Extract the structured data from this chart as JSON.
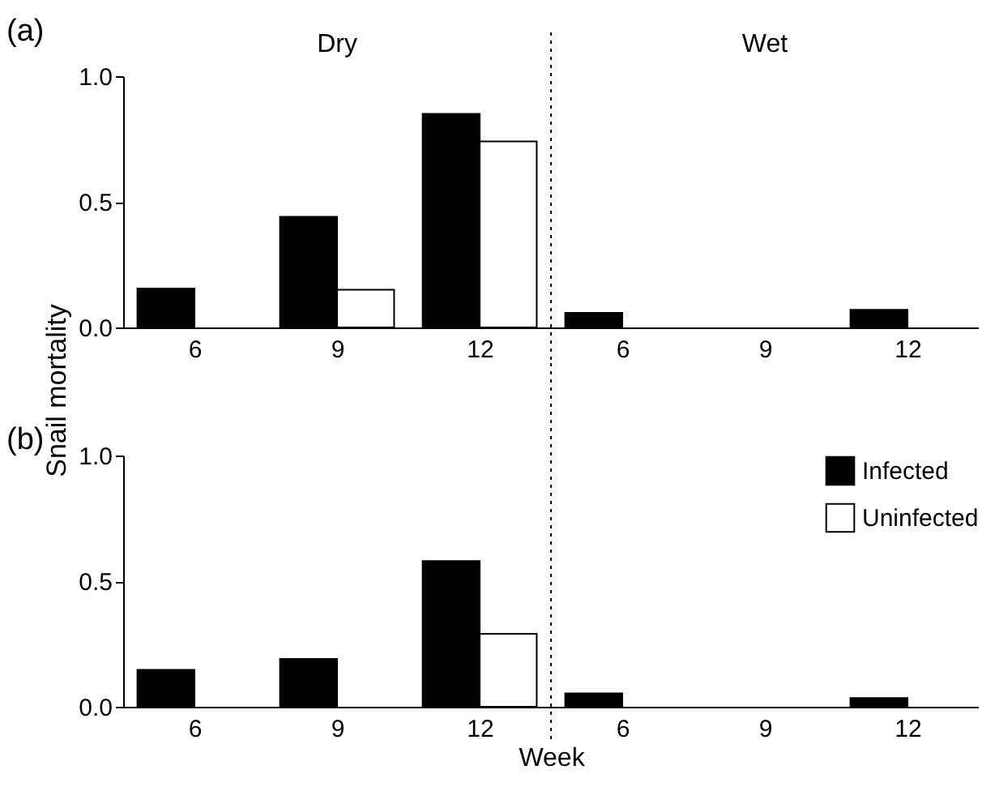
{
  "chart_data": [
    {
      "type": "bar",
      "title": "(a)",
      "ylabel": "Snail mortality",
      "categories": [
        "6",
        "9",
        "12",
        "6",
        "9",
        "12"
      ],
      "series": [
        {
          "color": "#000000",
          "values": [
            0.155,
            0.44,
            0.85,
            0.058,
            null,
            0.07
          ]
        },
        {
          "color": "#ffffff",
          "values": [
            null,
            0.15,
            0.74,
            null,
            null,
            null
          ]
        }
      ],
      "annotations": [
        "Dry",
        "Wet"
      ],
      "ylim": [
        0,
        1
      ],
      "yticks": [
        {
          "value": 0,
          "label": "0.0"
        },
        {
          "value": 0.5,
          "label": "0.5"
        },
        {
          "value": 1,
          "label": "1.0"
        }
      ],
      "legend": false
    },
    {
      "type": "bar",
      "title": "(b)",
      "xlabel": "Week",
      "categories": [
        "6",
        "9",
        "12",
        "6",
        "9",
        "12"
      ],
      "series": [
        {
          "name": "Infected",
          "color": "#000000",
          "values": [
            0.147,
            0.19,
            0.58,
            0.053,
            null,
            0.035
          ]
        },
        {
          "name": "Uninfected",
          "color": "#ffffff",
          "values": [
            null,
            null,
            0.29,
            null,
            null,
            null
          ]
        }
      ],
      "ylim": [
        0,
        1
      ],
      "yticks": [
        {
          "value": 0,
          "label": "0.0"
        },
        {
          "value": 0.5,
          "label": "0.5"
        },
        {
          "value": 1,
          "label": "1.0"
        }
      ],
      "legend": "top right"
    }
  ]
}
